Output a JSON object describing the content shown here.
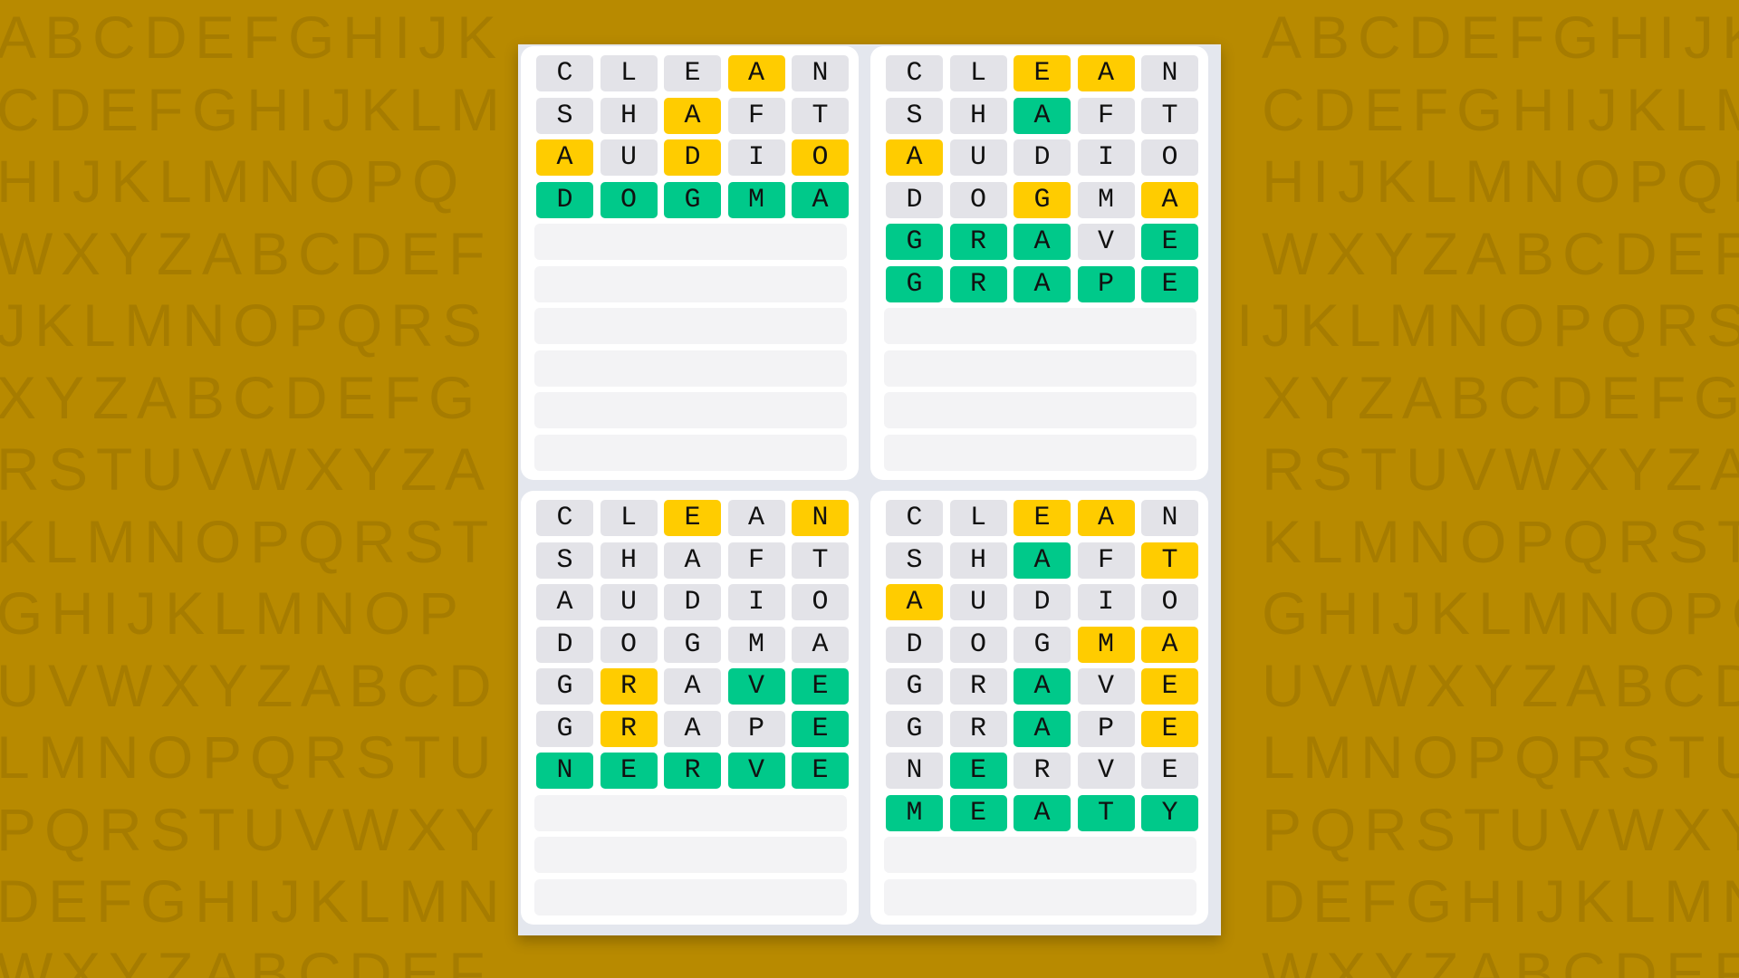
{
  "background_pattern": {
    "alphabet": "ABCDEFGHIJKLMNOPQRSTUVWXYZ",
    "row_starts": [
      "A",
      "C",
      "H",
      "W",
      "J",
      "X",
      "R",
      "K",
      "G",
      "U",
      "L",
      "P",
      "D",
      "W"
    ],
    "color": "#a67c00"
  },
  "colors": {
    "background": "#b88a00",
    "absent": "#e3e3e8",
    "present": "#ffcc00",
    "correct": "#00c98a",
    "empty": "#f3f3f5"
  },
  "legend": {
    "a": "absent",
    "p": "present",
    "c": "correct"
  },
  "boards": [
    {
      "total_rows": 10,
      "guesses": [
        {
          "word": "CLEAN",
          "marks": "aaapa"
        },
        {
          "word": "SHAFT",
          "marks": "aapaa"
        },
        {
          "word": "AUDIO",
          "marks": "papap"
        },
        {
          "word": "DOGMA",
          "marks": "ccccc"
        }
      ]
    },
    {
      "total_rows": 10,
      "guesses": [
        {
          "word": "CLEAN",
          "marks": "aappa"
        },
        {
          "word": "SHAFT",
          "marks": "aacaa"
        },
        {
          "word": "AUDIO",
          "marks": "paaaa"
        },
        {
          "word": "DOGMA",
          "marks": "aapap"
        },
        {
          "word": "GRAVE",
          "marks": "cccac"
        },
        {
          "word": "GRAPE",
          "marks": "ccccc"
        }
      ]
    },
    {
      "total_rows": 10,
      "guesses": [
        {
          "word": "CLEAN",
          "marks": "aapap"
        },
        {
          "word": "SHAFT",
          "marks": "aaaaa"
        },
        {
          "word": "AUDIO",
          "marks": "aaaaa"
        },
        {
          "word": "DOGMA",
          "marks": "aaaaa"
        },
        {
          "word": "GRAVE",
          "marks": "apacc"
        },
        {
          "word": "GRAPE",
          "marks": "apaac"
        },
        {
          "word": "NERVE",
          "marks": "ccccc"
        }
      ]
    },
    {
      "total_rows": 10,
      "guesses": [
        {
          "word": "CLEAN",
          "marks": "aappa"
        },
        {
          "word": "SHAFT",
          "marks": "aacap"
        },
        {
          "word": "AUDIO",
          "marks": "paaaa"
        },
        {
          "word": "DOGMA",
          "marks": "aaapp"
        },
        {
          "word": "GRAVE",
          "marks": "aacap"
        },
        {
          "word": "GRAPE",
          "marks": "aacap"
        },
        {
          "word": "NERVE",
          "marks": "acaaa"
        },
        {
          "word": "MEATY",
          "marks": "ccccc"
        }
      ]
    }
  ]
}
